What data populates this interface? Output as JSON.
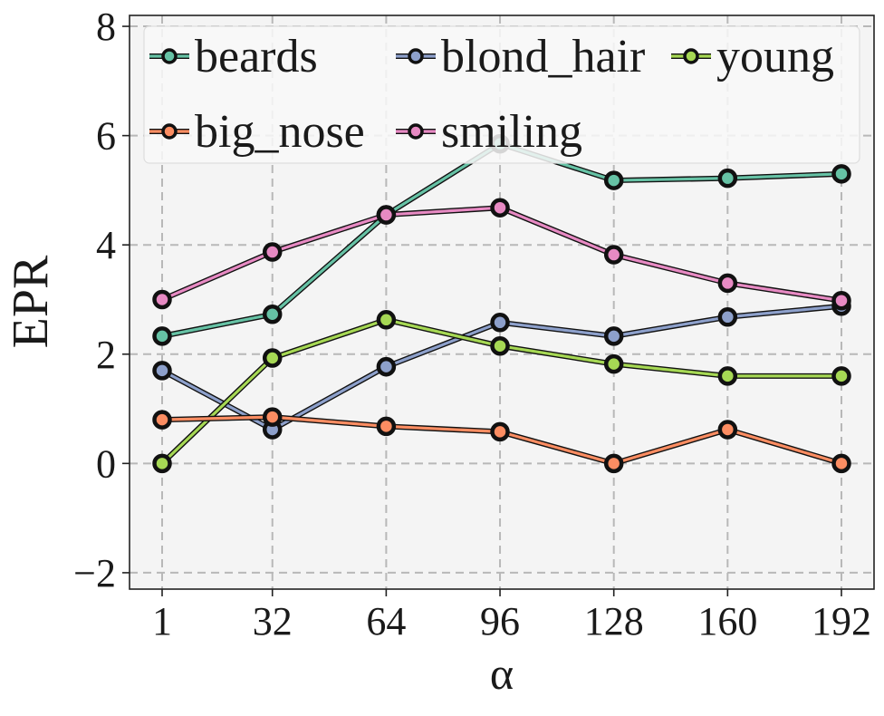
{
  "chart_data": {
    "type": "line",
    "title": "",
    "xlabel": "α",
    "ylabel": "EPR",
    "x": [
      1,
      32,
      64,
      96,
      128,
      160,
      192
    ],
    "x_ticks": [
      "1",
      "32",
      "64",
      "96",
      "128",
      "160",
      "192"
    ],
    "y_ticks": [
      "−2",
      "0",
      "2",
      "4",
      "6",
      "8"
    ],
    "ylim": [
      -2.3,
      8.2
    ],
    "grid": true,
    "legend_position": "top",
    "series": [
      {
        "name": "beards",
        "color": "#66c2a5",
        "values": [
          2.33,
          2.73,
          4.55,
          5.85,
          5.18,
          5.22,
          5.3
        ]
      },
      {
        "name": "blond_hair",
        "color": "#8da0cb",
        "values": [
          1.7,
          0.62,
          1.77,
          2.58,
          2.33,
          2.68,
          2.88
        ]
      },
      {
        "name": "young",
        "color": "#a6d854",
        "values": [
          0.0,
          1.93,
          2.63,
          2.15,
          1.82,
          1.6,
          1.6
        ]
      },
      {
        "name": "big_nose",
        "color": "#fc8d62",
        "values": [
          0.8,
          0.85,
          0.68,
          0.58,
          0.0,
          0.62,
          0.0
        ]
      },
      {
        "name": "smiling",
        "color": "#e78ac3",
        "values": [
          3.0,
          3.87,
          4.55,
          4.68,
          3.82,
          3.3,
          2.98
        ]
      }
    ]
  }
}
